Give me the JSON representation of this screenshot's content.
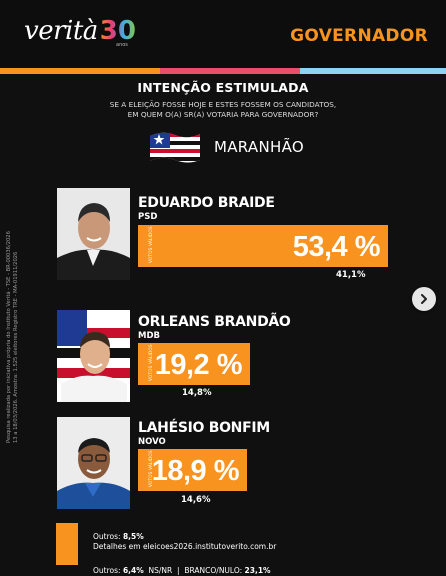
{
  "header": {
    "logo_text": "verità",
    "logo_number": "30",
    "logo_sub": "anos",
    "office": "GOVERNADOR"
  },
  "colors": {
    "accent": "#f7931e",
    "pink": "#e94e6a",
    "blue": "#8fd3f2",
    "background": "#101010"
  },
  "survey": {
    "title": "INTENÇÃO ESTIMULADA",
    "question_line1": "SE A ELEIÇÃO FOSSE HOJE E ESTES FOSSEM OS CANDIDATOS,",
    "question_line2": "EM QUEM O(A) SR(A) VOTARIA PARA GOVERNADOR?",
    "state": "MARANHÃO"
  },
  "sidenote": {
    "line1": "Pesquisa realizada por iniciativa própria do Instituto Veritá - TSE - BR-00036/2026",
    "line2": "13 a 18/03/2026. Amostra: 1.525 eleitores Registro TRE - MA-01911/2026"
  },
  "candidates": [
    {
      "name": "EDUARDO BRAIDE",
      "party": "PSD",
      "bar_label": "VOTOS VÁLIDOS",
      "percent": "53,4 %",
      "percent_value": 53.4,
      "total": "41,1%"
    },
    {
      "name": "ORLEANS BRANDÃO",
      "party": "MDB",
      "bar_label": "VOTOS VÁLIDOS",
      "percent": "19,2 %",
      "percent_value": 19.2,
      "total": "14,8%"
    },
    {
      "name": "LAHÉSIO BONFIM",
      "party": "NOVO",
      "bar_label": "VOTOS VÁLIDOS",
      "percent": "18,9 %",
      "percent_value": 18.9,
      "total": "14,6%"
    }
  ],
  "footer": {
    "others_label": "Outros:",
    "others_value": "8,5%",
    "details": "Detalhes em eleicoes2026.institutoverito.com.br",
    "others2_label": "Outros:",
    "others2_value": "6,4%",
    "nsnr": "NS/NR",
    "separator": "|",
    "blank_label": "BRANCO/NULO:",
    "blank_value": "23,1%"
  },
  "carousel": {
    "next_icon": "chevron-right-icon"
  }
}
